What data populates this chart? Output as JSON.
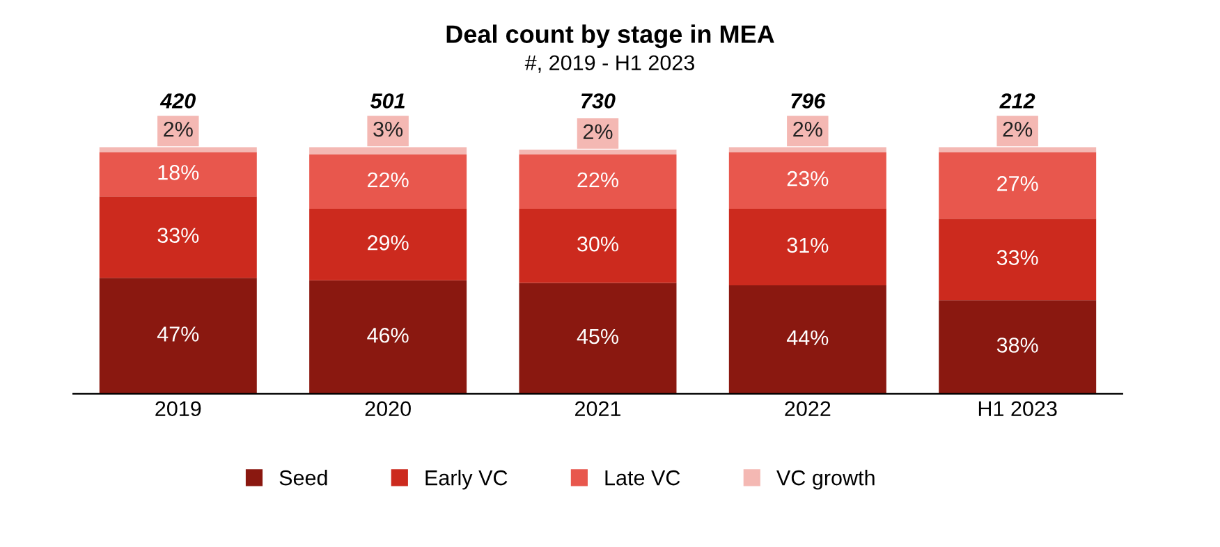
{
  "chart_data": {
    "type": "bar",
    "title": "Deal count by stage in MEA",
    "subtitle": "#, 2019 - H1 2023",
    "categories": [
      "2019",
      "2020",
      "2021",
      "2022",
      "H1 2023"
    ],
    "stacked": true,
    "legend": "bottom",
    "tick_labels": "x",
    "grid": false,
    "annotations": [
      "420",
      "501",
      "730",
      "796",
      "212"
    ],
    "series": [
      {
        "name": "Seed",
        "color": "#8a1810",
        "values": [
          47,
          46,
          45,
          44,
          38
        ],
        "value_labels": [
          "47%",
          "46%",
          "45%",
          "44%",
          "38%"
        ]
      },
      {
        "name": "Early VC",
        "color": "#cc2a1e",
        "values": [
          33,
          29,
          30,
          31,
          33
        ],
        "value_labels": [
          "33%",
          "29%",
          "30%",
          "31%",
          "33%"
        ]
      },
      {
        "name": "Late VC",
        "color": "#e8574d",
        "values": [
          18,
          22,
          22,
          23,
          27
        ],
        "value_labels": [
          "18%",
          "22%",
          "22%",
          "23%",
          "27%"
        ]
      },
      {
        "name": "VC growth",
        "color": "#f4b8b3",
        "values": [
          2,
          3,
          2,
          2,
          2
        ],
        "value_labels": [
          "2%",
          "3%",
          "2%",
          "2%",
          "2%"
        ]
      }
    ]
  }
}
